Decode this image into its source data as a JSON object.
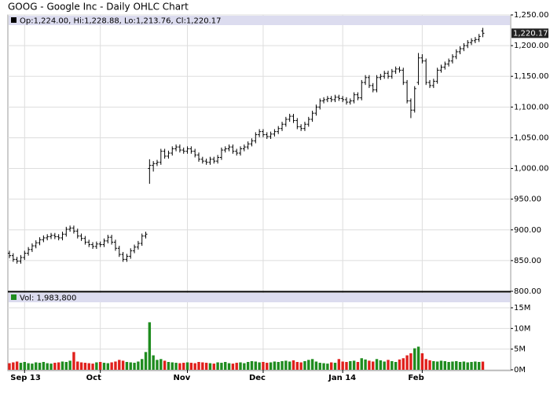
{
  "chart_data": [
    {
      "type": "ohlc",
      "title": "GOOG - Google Inc - Daily OHLC Chart",
      "legend_text": "Op:1,224.00, Hi:1,228.88, Lo:1,213.76, Cl:1,220.17",
      "last_label": "1,220.17",
      "color": "#000000",
      "grid": true,
      "open": [
        862,
        858,
        852,
        849,
        855,
        862,
        868,
        874,
        879,
        884,
        887,
        889,
        891,
        889,
        887,
        893,
        901,
        903,
        898,
        890,
        886,
        880,
        876,
        873,
        877,
        876,
        882,
        888,
        880,
        870,
        860,
        852,
        857,
        866,
        872,
        878,
        890,
        1000,
        1005,
        1008,
        1010,
        1028,
        1020,
        1025,
        1032,
        1035,
        1030,
        1028,
        1032,
        1028,
        1022,
        1015,
        1012,
        1010,
        1015,
        1012,
        1018,
        1030,
        1032,
        1035,
        1028,
        1025,
        1032,
        1035,
        1040,
        1045,
        1055,
        1060,
        1055,
        1052,
        1056,
        1060,
        1065,
        1072,
        1080,
        1085,
        1078,
        1068,
        1065,
        1072,
        1080,
        1090,
        1100,
        1110,
        1112,
        1114,
        1112,
        1116,
        1114,
        1112,
        1108,
        1110,
        1120,
        1115,
        1140,
        1148,
        1135,
        1128,
        1148,
        1150,
        1155,
        1150,
        1158,
        1162,
        1160,
        1140,
        1110,
        1095,
        1140,
        1180,
        1175,
        1140,
        1135,
        1142,
        1160,
        1165,
        1170,
        1175,
        1182,
        1190,
        1195,
        1200,
        1205,
        1208,
        1210,
        1224
      ],
      "high": [
        866,
        862,
        856,
        859,
        866,
        872,
        878,
        883,
        888,
        891,
        893,
        895,
        895,
        893,
        897,
        905,
        907,
        907,
        902,
        894,
        890,
        884,
        880,
        881,
        881,
        886,
        892,
        892,
        884,
        874,
        864,
        861,
        870,
        876,
        882,
        894,
        897,
        1015,
        1012,
        1014,
        1032,
        1032,
        1029,
        1036,
        1039,
        1039,
        1034,
        1036,
        1036,
        1032,
        1026,
        1019,
        1016,
        1019,
        1019,
        1022,
        1034,
        1036,
        1039,
        1039,
        1032,
        1036,
        1039,
        1044,
        1049,
        1059,
        1064,
        1064,
        1059,
        1060,
        1064,
        1069,
        1076,
        1084,
        1089,
        1089,
        1082,
        1072,
        1076,
        1084,
        1094,
        1104,
        1114,
        1116,
        1118,
        1118,
        1120,
        1120,
        1118,
        1116,
        1114,
        1124,
        1124,
        1144,
        1152,
        1152,
        1139,
        1152,
        1154,
        1159,
        1159,
        1162,
        1166,
        1166,
        1164,
        1144,
        1114,
        1134,
        1188,
        1186,
        1179,
        1144,
        1146,
        1164,
        1169,
        1174,
        1179,
        1186,
        1194,
        1199,
        1204,
        1209,
        1212,
        1214,
        1219,
        1228.88
      ],
      "low": [
        854,
        848,
        845,
        845,
        851,
        858,
        864,
        870,
        875,
        880,
        883,
        885,
        885,
        883,
        883,
        889,
        897,
        894,
        886,
        882,
        876,
        872,
        869,
        869,
        872,
        872,
        878,
        876,
        866,
        856,
        848,
        848,
        853,
        862,
        868,
        874,
        886,
        975,
        995,
        1004,
        1006,
        1016,
        1016,
        1021,
        1028,
        1026,
        1024,
        1024,
        1024,
        1018,
        1011,
        1008,
        1006,
        1006,
        1008,
        1008,
        1014,
        1026,
        1028,
        1024,
        1021,
        1021,
        1028,
        1031,
        1036,
        1041,
        1051,
        1051,
        1048,
        1048,
        1052,
        1056,
        1061,
        1068,
        1076,
        1074,
        1064,
        1061,
        1061,
        1068,
        1076,
        1086,
        1096,
        1106,
        1108,
        1108,
        1108,
        1110,
        1108,
        1104,
        1104,
        1106,
        1111,
        1111,
        1136,
        1131,
        1124,
        1124,
        1144,
        1146,
        1146,
        1146,
        1154,
        1156,
        1136,
        1106,
        1082,
        1091,
        1136,
        1171,
        1136,
        1131,
        1131,
        1138,
        1156,
        1161,
        1166,
        1171,
        1178,
        1186,
        1191,
        1196,
        1201,
        1204,
        1206,
        1213.76
      ],
      "close": [
        858,
        852,
        849,
        855,
        862,
        868,
        874,
        879,
        884,
        887,
        889,
        891,
        889,
        887,
        893,
        901,
        903,
        898,
        890,
        886,
        880,
        876,
        873,
        877,
        876,
        882,
        888,
        880,
        870,
        860,
        852,
        857,
        866,
        872,
        878,
        890,
        893,
        1005,
        1008,
        1010,
        1028,
        1020,
        1025,
        1032,
        1035,
        1030,
        1028,
        1032,
        1028,
        1022,
        1015,
        1012,
        1010,
        1015,
        1012,
        1018,
        1030,
        1032,
        1035,
        1028,
        1025,
        1032,
        1035,
        1040,
        1045,
        1055,
        1060,
        1055,
        1052,
        1056,
        1060,
        1065,
        1072,
        1080,
        1085,
        1078,
        1068,
        1065,
        1072,
        1080,
        1090,
        1100,
        1110,
        1112,
        1114,
        1112,
        1116,
        1114,
        1112,
        1108,
        1110,
        1120,
        1115,
        1140,
        1148,
        1135,
        1128,
        1148,
        1150,
        1155,
        1150,
        1158,
        1162,
        1160,
        1140,
        1110,
        1095,
        1130,
        1180,
        1175,
        1140,
        1135,
        1142,
        1160,
        1165,
        1170,
        1175,
        1182,
        1190,
        1195,
        1200,
        1205,
        1208,
        1210,
        1215,
        1220.17
      ],
      "ylim": [
        800,
        1250
      ],
      "yticks": [
        {
          "value": 800,
          "label": "800.00"
        },
        {
          "value": 850,
          "label": "850.00"
        },
        {
          "value": 900,
          "label": "900.00"
        },
        {
          "value": 950,
          "label": "950.00"
        },
        {
          "value": 1000,
          "label": "1,000.00"
        },
        {
          "value": 1050,
          "label": "1,050.00"
        },
        {
          "value": 1100,
          "label": "1,100.00"
        },
        {
          "value": 1150,
          "label": "1,150.00"
        },
        {
          "value": 1200,
          "label": "1,200.00"
        },
        {
          "value": 1250,
          "label": "1,250.00"
        }
      ]
    },
    {
      "type": "bar",
      "legend_text": "Vol: 1,983,800",
      "up_color": "#1f8c1f",
      "down_color": "#e0201c",
      "grid": true,
      "categories": [
        null,
        null,
        null,
        null,
        "Sep 13",
        null,
        null,
        null,
        null,
        null,
        null,
        null,
        null,
        null,
        null,
        null,
        null,
        null,
        null,
        null,
        null,
        null,
        null,
        null,
        "Oct",
        null,
        null,
        null,
        null,
        null,
        null,
        null,
        null,
        null,
        null,
        null,
        null,
        null,
        null,
        null,
        null,
        null,
        null,
        null,
        null,
        null,
        null,
        "Nov",
        null,
        null,
        null,
        null,
        null,
        null,
        null,
        null,
        null,
        null,
        null,
        null,
        null,
        null,
        null,
        null,
        null,
        null,
        null,
        "Dec",
        null,
        null,
        null,
        null,
        null,
        null,
        null,
        null,
        null,
        null,
        null,
        null,
        null,
        null,
        null,
        null,
        null,
        null,
        null,
        null,
        "Jan 14",
        null,
        null,
        null,
        null,
        null,
        null,
        null,
        null,
        null,
        null,
        null,
        null,
        null,
        null,
        null,
        null,
        null,
        null,
        null,
        null,
        "Feb",
        null,
        null,
        null,
        null,
        null,
        null,
        null,
        null,
        null,
        null,
        null,
        null,
        null,
        null,
        null,
        null
      ],
      "values": [
        1.6,
        1.8,
        2.0,
        1.7,
        1.9,
        1.6,
        1.5,
        1.8,
        1.7,
        1.9,
        1.6,
        1.5,
        1.7,
        1.8,
        2.0,
        1.9,
        2.2,
        4.3,
        2.0,
        1.8,
        1.7,
        1.6,
        1.5,
        1.8,
        1.9,
        1.7,
        1.6,
        1.8,
        2.0,
        2.4,
        2.2,
        1.9,
        1.8,
        1.7,
        2.0,
        2.6,
        4.3,
        11.5,
        3.5,
        2.4,
        2.6,
        2.2,
        1.9,
        1.8,
        1.7,
        1.6,
        1.7,
        1.8,
        1.7,
        1.6,
        1.9,
        1.8,
        1.7,
        1.6,
        1.5,
        1.8,
        1.7,
        1.9,
        1.6,
        1.5,
        1.7,
        1.8,
        1.6,
        1.9,
        2.1,
        2.0,
        1.8,
        1.9,
        1.7,
        1.8,
        2.0,
        1.9,
        2.1,
        2.2,
        2.0,
        2.3,
        1.9,
        1.8,
        2.1,
        2.4,
        2.6,
        2.0,
        1.7,
        1.6,
        1.5,
        1.8,
        1.7,
        2.6,
        2.0,
        1.9,
        2.1,
        2.2,
        1.9,
        2.8,
        2.5,
        2.2,
        2.0,
        2.6,
        2.3,
        2.0,
        2.4,
        2.1,
        1.9,
        2.5,
        2.8,
        3.5,
        4.0,
        5.2,
        5.6,
        4.0,
        2.6,
        2.3,
        2.1,
        2.0,
        2.2,
        2.1,
        1.9,
        2.0,
        2.1,
        1.9,
        2.0,
        1.8,
        1.9,
        2.0,
        1.9,
        1.9838
      ],
      "ylim": [
        0,
        18.8
      ],
      "yticks": [
        {
          "value": 0,
          "label": "0M"
        },
        {
          "value": 5,
          "label": "5M"
        },
        {
          "value": 10,
          "label": "10M"
        },
        {
          "value": 15,
          "label": "15M"
        }
      ]
    }
  ]
}
